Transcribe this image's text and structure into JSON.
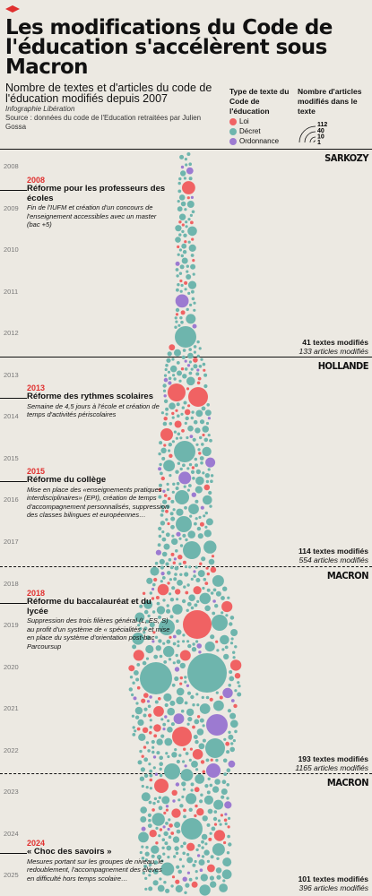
{
  "header": {
    "title": "Les modifications du Code de l'éducation s'accélèrent sous Macron",
    "subtitle": "Nombre de textes et d'articles du code de l'éducation modifiés depuis 2007",
    "credit": "Infographie Libération",
    "source": "Source : données du code de l'Education retraitées par Julien Gossa"
  },
  "legend": {
    "type_title": "Type de texte du Code de l'éducation",
    "types": [
      {
        "label": "Loi",
        "color": "#f06263"
      },
      {
        "label": "Décret",
        "color": "#6eb5ad"
      },
      {
        "label": "Ordonnance",
        "color": "#9c7ad1"
      }
    ],
    "size_title": "Nombre d'articles modifiés dans le texte",
    "size_values": [
      "112",
      "40",
      "10",
      "1"
    ]
  },
  "chart_data": {
    "type": "scatter",
    "encoding": "beeswarm timeline 2007-2025; one bubble per text, area = number of articles modified, color = text type",
    "years": [
      "2008",
      "2009",
      "2010",
      "2011",
      "2012",
      "2013",
      "2014",
      "2015",
      "2016",
      "2017",
      "2018",
      "2019",
      "2020",
      "2021",
      "2022",
      "2023",
      "2024",
      "2025"
    ],
    "periods": [
      {
        "president": "SARKOZY",
        "textes": "41 textes modifiés",
        "articles": "133 articles modifiés",
        "texts": 41,
        "articles_n": 133
      },
      {
        "president": "HOLLANDE",
        "textes": "114 textes modifiés",
        "articles": "554 articles modifiés",
        "texts": 114,
        "articles_n": 554
      },
      {
        "president": "MACRON",
        "textes": "193 textes modifiés",
        "articles": "1165 articles modifiés",
        "texts": 193,
        "articles_n": 1165
      },
      {
        "president": "MACRON",
        "textes": "101 textes modifiés",
        "articles": "396 articles modifiés",
        "texts": 101,
        "articles_n": 396
      }
    ]
  },
  "annotations": [
    {
      "year": "2008",
      "title": "Réforme pour les professeurs des écoles",
      "text": "Fin de l'IUFM et création d'un concours de l'enseignement accessibles avec un master (bac +5)"
    },
    {
      "year": "2013",
      "title": "Réforme des rythmes scolaires",
      "text": "Semaine de 4,5 jours à l'école et création de temps d'activités périscolaires"
    },
    {
      "year": "2015",
      "title": "Réforme du collège",
      "text": "Mise en place des «enseignements pratiques interdisciplinaires» (EPI), création de temps d'accompagnement personnalisés, suppression des classes bilingues et européennes…"
    },
    {
      "year": "2018",
      "title": "Réforme du baccalauréat et du lycée",
      "text": "Suppression des trois filières général (L, ES, S) au profit d'un système de « spécialités » et mise en place du système d'orientation post-bac Parcoursup"
    },
    {
      "year": "2024",
      "title": "« Choc des savoirs »",
      "text": "Mesures portant sur les groupes de niveau, le redoublement, l'accompagnement des élèves en difficulté hors temps scolaire…"
    }
  ]
}
